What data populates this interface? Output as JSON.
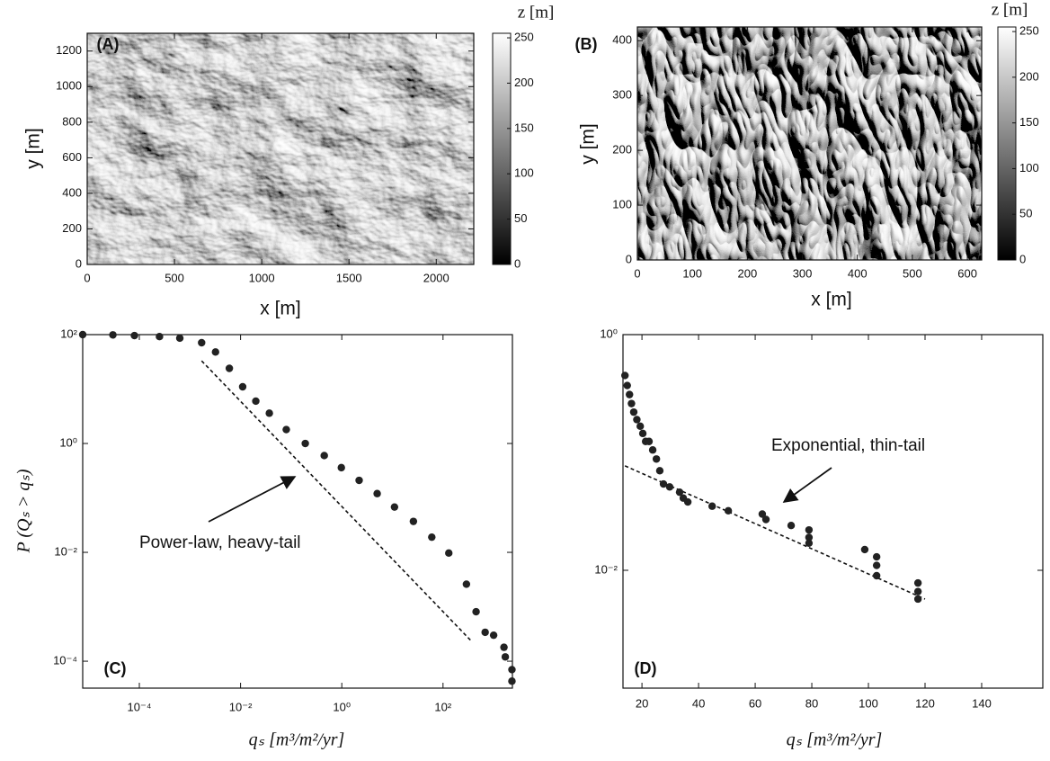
{
  "chart_data": [
    {
      "type": "image",
      "panel_label": "(A)",
      "xlabel": "x [m]",
      "ylabel": "y [m]",
      "xlim": [
        0,
        2215
      ],
      "ylim": [
        0,
        1300
      ],
      "xticks": [
        0,
        500,
        1000,
        1500,
        2000
      ],
      "yticks": [
        0,
        200,
        400,
        600,
        800,
        1000,
        1200
      ],
      "colorbar": {
        "label": "z [m]",
        "lim": [
          0,
          255
        ],
        "ticks": [
          0,
          50,
          100,
          150,
          200,
          250
        ]
      }
    },
    {
      "type": "image",
      "panel_label": "(B)",
      "xlabel": "x [m]",
      "ylabel": "y [m]",
      "xlim": [
        0,
        626
      ],
      "ylim": [
        0,
        425
      ],
      "xticks": [
        0,
        100,
        200,
        300,
        400,
        500,
        600
      ],
      "yticks": [
        0,
        100,
        200,
        300,
        400
      ],
      "colorbar": {
        "label": "z [m]",
        "lim": [
          0,
          255
        ],
        "ticks": [
          0,
          50,
          100,
          150,
          200,
          250
        ]
      }
    },
    {
      "type": "scatter",
      "panel_label": "(C)",
      "xlabel": "qₛ [m³/m²/yr]",
      "ylabel": "P (Qₛ > qₛ)",
      "xscale": "log",
      "yscale": "log",
      "color": "#222222",
      "xlim": [
        7.6e-06,
        2350
      ],
      "ylim": [
        3.2e-05,
        100
      ],
      "xticks": [
        {
          "value": 0.0001,
          "label": "10⁻⁴"
        },
        {
          "value": 0.01,
          "label": "10⁻²"
        },
        {
          "value": 1,
          "label": "10⁰"
        },
        {
          "value": 100,
          "label": "10²"
        }
      ],
      "yticks": [
        {
          "value": 100,
          "label": "10²"
        },
        {
          "value": 1,
          "label": "10⁰"
        },
        {
          "value": 0.01,
          "label": "10⁻²"
        },
        {
          "value": 0.0001,
          "label": "10⁻⁴"
        }
      ],
      "x": [
        7.6e-06,
        3e-05,
        8e-05,
        0.00025,
        0.00063,
        0.0017,
        0.0032,
        0.006,
        0.011,
        0.02,
        0.037,
        0.08,
        0.19,
        0.45,
        0.98,
        2.2,
        5,
        11,
        26,
        60,
        130,
        290,
        450,
        680,
        1000,
        1600,
        1700,
        2300,
        2300
      ],
      "values": [
        100,
        99,
        96,
        92,
        86,
        71,
        48,
        24,
        11,
        6,
        3.6,
        1.8,
        1.0,
        0.6,
        0.36,
        0.21,
        0.12,
        0.068,
        0.037,
        0.019,
        0.0097,
        0.0026,
        0.00081,
        0.00034,
        0.0003,
        0.00018,
        0.00012,
        7e-05,
        4.3e-05
      ],
      "fit_line": {
        "x": [
          0.0017,
          370
        ],
        "values": [
          33,
          0.00023
        ]
      },
      "annotation": "Power-law, heavy-tail"
    },
    {
      "type": "scatter",
      "panel_label": "(D)",
      "xlabel": "qₛ [m³/m²/yr]",
      "xscale": "linear",
      "yscale": "log",
      "color": "#222222",
      "xlim": [
        13.3,
        161.6
      ],
      "ylim": [
        0.001,
        1
      ],
      "xticks": [
        20,
        40,
        60,
        80,
        100,
        120,
        140
      ],
      "yticks": [
        {
          "value": 1,
          "label": "10⁰"
        },
        {
          "value": 0.01,
          "label": "10⁻²"
        }
      ],
      "x": [
        14,
        14.8,
        15.6,
        16.3,
        17.1,
        18.2,
        19.4,
        20.3,
        21.3,
        22.5,
        23.8,
        25.1,
        26.3,
        27.6,
        29.8,
        33.3,
        34.6,
        36.2,
        44.8,
        50.5,
        62.5,
        63.8,
        72.7,
        79,
        79,
        79,
        98.7,
        102.9,
        102.9,
        102.9,
        117.5,
        117.5,
        117.5
      ],
      "values": [
        0.45,
        0.37,
        0.31,
        0.26,
        0.22,
        0.19,
        0.167,
        0.145,
        0.124,
        0.124,
        0.105,
        0.088,
        0.07,
        0.054,
        0.051,
        0.046,
        0.041,
        0.038,
        0.035,
        0.032,
        0.03,
        0.027,
        0.024,
        0.022,
        0.019,
        0.017,
        0.015,
        0.013,
        0.011,
        0.009,
        0.0078,
        0.0066,
        0.0057
      ],
      "fit_line": {
        "x": [
          14,
          120
        ],
        "values": [
          0.077,
          0.0057
        ]
      },
      "annotation": "Exponential, thin-tail"
    }
  ]
}
